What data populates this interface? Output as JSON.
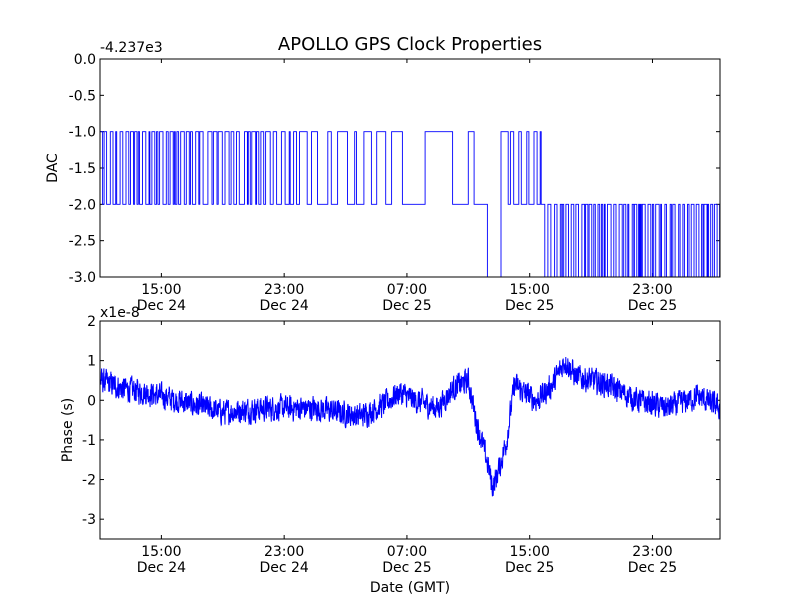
{
  "title": "APOLLO GPS Clock Properties",
  "chart_data": [
    {
      "type": "line",
      "name": "dac",
      "ylabel": "DAC",
      "xlabel": "",
      "offset_label": "-4.237e3",
      "ylim": [
        -3.0,
        0.0
      ],
      "xlim": [
        11.0,
        51.4
      ],
      "yticks": [
        {
          "value": 0.0,
          "label": "0.0"
        },
        {
          "value": -0.5,
          "label": "-0.5"
        },
        {
          "value": -1.0,
          "label": "-1.0"
        },
        {
          "value": -1.5,
          "label": "-1.5"
        },
        {
          "value": -2.0,
          "label": "-2.0"
        },
        {
          "value": -2.5,
          "label": "-2.5"
        },
        {
          "value": -3.0,
          "label": "-3.0"
        }
      ],
      "xticks": [
        {
          "value": 15,
          "time": "15:00",
          "date": "Dec 24"
        },
        {
          "value": 23,
          "time": "23:00",
          "date": "Dec 24"
        },
        {
          "value": 31,
          "time": "07:00",
          "date": "Dec 25"
        },
        {
          "value": 39,
          "time": "15:00",
          "date": "Dec 25"
        },
        {
          "value": 47,
          "time": "23:00",
          "date": "Dec 25"
        }
      ],
      "color": "#0000ff",
      "segments": [
        {
          "from": 11.0,
          "to": 17.5,
          "levels": [
            -1,
            -2
          ],
          "dwell": 0.12
        },
        {
          "from": 17.5,
          "to": 24.0,
          "levels": [
            -1,
            -2
          ],
          "dwell": 0.18
        },
        {
          "from": 24.0,
          "to": 30.0,
          "levels": [
            -1,
            -2
          ],
          "dwell": 0.35
        },
        {
          "from": 30.0,
          "to": 35.0,
          "levels": [
            -1,
            -2
          ],
          "dwell": 0.9
        },
        {
          "from": 35.0,
          "to": 37.6,
          "levels": [
            -1,
            -2,
            -3,
            0
          ],
          "dwell": 0.6
        },
        {
          "from": 37.6,
          "to": 39.8,
          "levels": [
            -1,
            -2
          ],
          "dwell": 0.2
        },
        {
          "from": 39.8,
          "to": 51.4,
          "levels": [
            -2,
            -3
          ],
          "dwell": 0.12
        }
      ]
    },
    {
      "type": "line",
      "name": "phase",
      "ylabel": "Phase (s)",
      "xlabel": "Date (GMT)",
      "offset_label": "x1e-8",
      "ylim": [
        -3.5,
        2.0
      ],
      "xlim": [
        11.0,
        51.4
      ],
      "yticks": [
        {
          "value": 2,
          "label": "2"
        },
        {
          "value": 1,
          "label": "1"
        },
        {
          "value": 0,
          "label": "0"
        },
        {
          "value": -1,
          "label": "-1"
        },
        {
          "value": -2,
          "label": "-2"
        },
        {
          "value": -3,
          "label": "-3"
        }
      ],
      "xticks": [
        {
          "value": 15,
          "time": "15:00",
          "date": "Dec 24"
        },
        {
          "value": 23,
          "time": "23:00",
          "date": "Dec 24"
        },
        {
          "value": 31,
          "time": "07:00",
          "date": "Dec 25"
        },
        {
          "value": 39,
          "time": "15:00",
          "date": "Dec 25"
        },
        {
          "value": 47,
          "time": "23:00",
          "date": "Dec 25"
        }
      ],
      "color": "#0000ff",
      "trend": [
        [
          11.0,
          0.5
        ],
        [
          12.5,
          0.3
        ],
        [
          14.0,
          0.2
        ],
        [
          16.0,
          0.0
        ],
        [
          19.0,
          -0.3
        ],
        [
          22.0,
          -0.2
        ],
        [
          25.0,
          -0.2
        ],
        [
          28.0,
          -0.4
        ],
        [
          29.5,
          -0.1
        ],
        [
          30.5,
          0.2
        ],
        [
          31.5,
          0.0
        ],
        [
          33.0,
          -0.2
        ],
        [
          34.0,
          0.3
        ],
        [
          35.0,
          0.5
        ],
        [
          35.5,
          -0.5
        ],
        [
          36.2,
          -1.5
        ],
        [
          36.6,
          -2.2
        ],
        [
          37.1,
          -1.6
        ],
        [
          37.5,
          -1.0
        ],
        [
          38.0,
          0.4
        ],
        [
          38.6,
          0.2
        ],
        [
          39.5,
          0.0
        ],
        [
          40.5,
          0.4
        ],
        [
          41.3,
          1.0
        ],
        [
          42.0,
          0.6
        ],
        [
          44.0,
          0.4
        ],
        [
          46.0,
          0.0
        ],
        [
          48.0,
          -0.2
        ],
        [
          50.0,
          0.1
        ],
        [
          51.4,
          -0.2
        ]
      ],
      "noise": 0.28
    }
  ]
}
